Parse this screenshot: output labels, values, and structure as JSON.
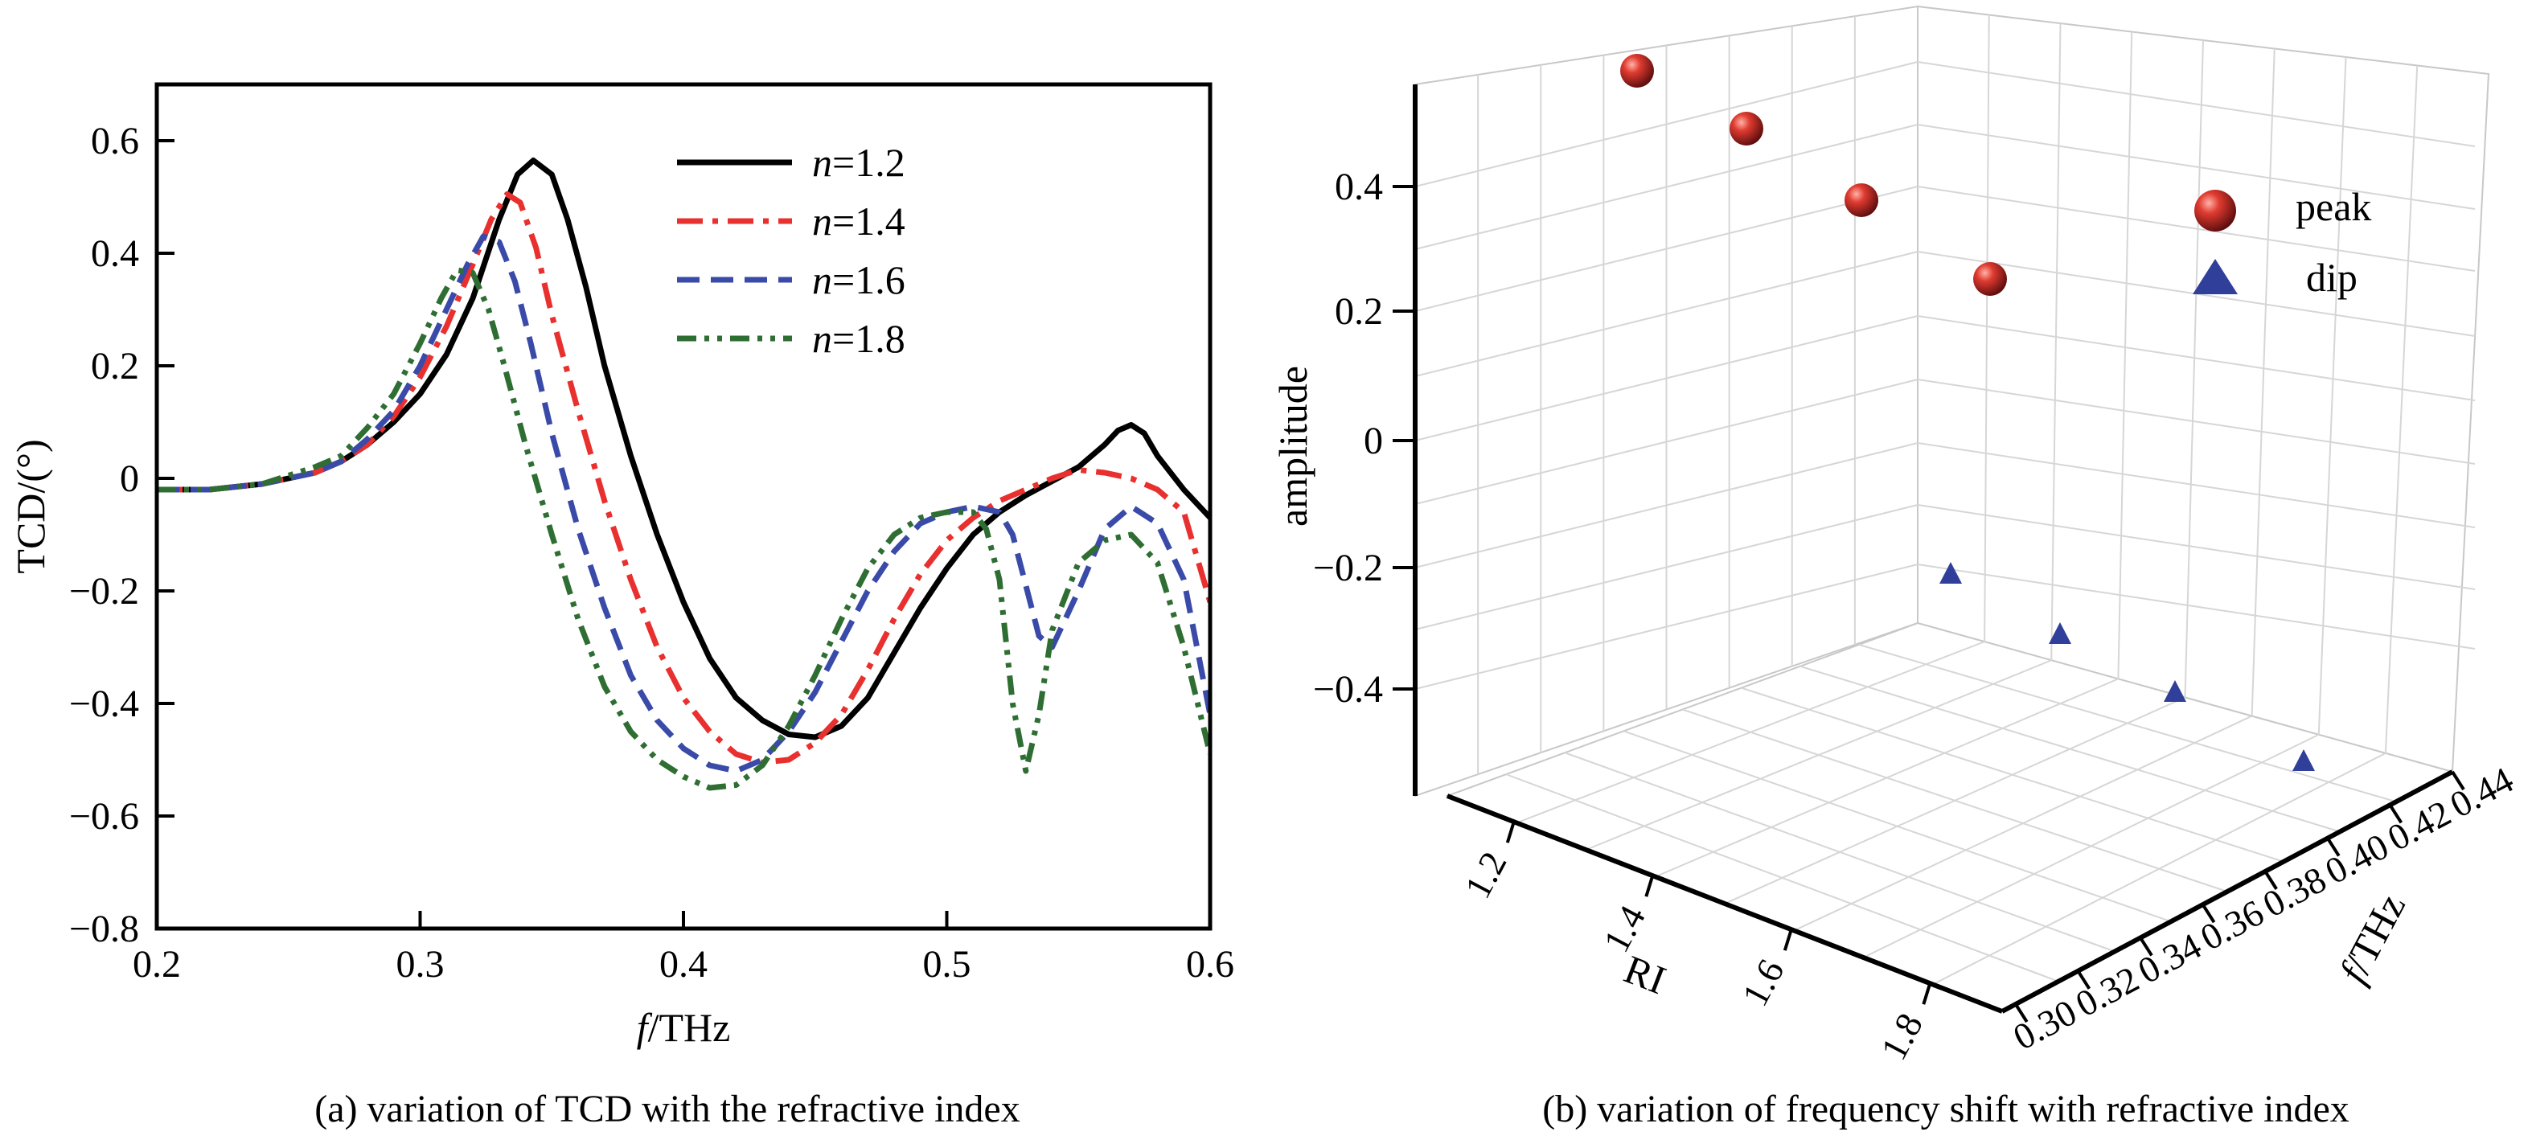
{
  "figure": {
    "caption_a": "(a) variation of TCD with the refractive index",
    "caption_b": "(b) variation of frequency shift with refractive index"
  },
  "chart_data": [
    {
      "type": "line",
      "xlabel": "f/THz",
      "ylabel": "TCD/(°)",
      "xlim": [
        0.2,
        0.6
      ],
      "ylim": [
        -0.8,
        0.7
      ],
      "xticks": [
        "0.2",
        "0.3",
        "0.4",
        "0.5",
        "0.6"
      ],
      "yticks": [
        "0.6",
        "0.4",
        "0.2",
        "0",
        "−0.2",
        "−0.4",
        "−0.6",
        "−0.8"
      ],
      "legend_position": "top-right",
      "series": [
        {
          "name": "n=1.2",
          "label_italic": "n",
          "label_rest": "=1.2",
          "color": "#000000",
          "dash": "solid",
          "x": [
            0.2,
            0.22,
            0.24,
            0.26,
            0.27,
            0.28,
            0.29,
            0.3,
            0.31,
            0.32,
            0.33,
            0.337,
            0.343,
            0.35,
            0.356,
            0.363,
            0.37,
            0.38,
            0.39,
            0.4,
            0.41,
            0.42,
            0.43,
            0.44,
            0.45,
            0.46,
            0.47,
            0.48,
            0.49,
            0.5,
            0.51,
            0.52,
            0.53,
            0.54,
            0.55,
            0.56,
            0.565,
            0.57,
            0.575,
            0.58,
            0.59,
            0.6
          ],
          "y": [
            -0.02,
            -0.02,
            -0.01,
            0.01,
            0.03,
            0.06,
            0.1,
            0.15,
            0.22,
            0.32,
            0.46,
            0.54,
            0.565,
            0.54,
            0.46,
            0.34,
            0.2,
            0.04,
            -0.1,
            -0.22,
            -0.32,
            -0.39,
            -0.43,
            -0.455,
            -0.46,
            -0.44,
            -0.39,
            -0.31,
            -0.23,
            -0.16,
            -0.1,
            -0.06,
            -0.03,
            -0.005,
            0.02,
            0.06,
            0.085,
            0.095,
            0.08,
            0.04,
            -0.02,
            -0.07
          ]
        },
        {
          "name": "n=1.4",
          "label_italic": "n",
          "label_rest": "=1.4",
          "color": "#e8302e",
          "dash": "dashdot",
          "x": [
            0.2,
            0.22,
            0.24,
            0.26,
            0.27,
            0.28,
            0.29,
            0.3,
            0.31,
            0.32,
            0.327,
            0.333,
            0.338,
            0.344,
            0.35,
            0.36,
            0.37,
            0.38,
            0.39,
            0.4,
            0.41,
            0.42,
            0.43,
            0.44,
            0.45,
            0.46,
            0.47,
            0.48,
            0.49,
            0.5,
            0.51,
            0.52,
            0.53,
            0.54,
            0.55,
            0.56,
            0.57,
            0.58,
            0.59,
            0.6
          ],
          "y": [
            -0.02,
            -0.02,
            -0.01,
            0.01,
            0.03,
            0.06,
            0.11,
            0.18,
            0.27,
            0.38,
            0.46,
            0.505,
            0.49,
            0.41,
            0.29,
            0.12,
            -0.04,
            -0.18,
            -0.3,
            -0.39,
            -0.45,
            -0.49,
            -0.505,
            -0.5,
            -0.47,
            -0.42,
            -0.34,
            -0.25,
            -0.17,
            -0.11,
            -0.07,
            -0.04,
            -0.02,
            0.0,
            0.015,
            0.01,
            0.0,
            -0.02,
            -0.06,
            -0.22
          ]
        },
        {
          "name": "n=1.6",
          "label_italic": "n",
          "label_rest": "=1.6",
          "color": "#3a4aa8",
          "dash": "dash",
          "x": [
            0.2,
            0.22,
            0.24,
            0.26,
            0.27,
            0.28,
            0.29,
            0.3,
            0.31,
            0.318,
            0.324,
            0.33,
            0.336,
            0.342,
            0.35,
            0.36,
            0.37,
            0.38,
            0.39,
            0.4,
            0.41,
            0.42,
            0.43,
            0.44,
            0.45,
            0.46,
            0.47,
            0.48,
            0.49,
            0.5,
            0.51,
            0.52,
            0.525,
            0.53,
            0.535,
            0.54,
            0.55,
            0.56,
            0.57,
            0.58,
            0.59,
            0.6
          ],
          "y": [
            -0.02,
            -0.02,
            -0.01,
            0.01,
            0.03,
            0.07,
            0.12,
            0.2,
            0.3,
            0.38,
            0.43,
            0.42,
            0.35,
            0.24,
            0.08,
            -0.09,
            -0.23,
            -0.35,
            -0.43,
            -0.48,
            -0.51,
            -0.52,
            -0.5,
            -0.45,
            -0.38,
            -0.29,
            -0.2,
            -0.13,
            -0.08,
            -0.06,
            -0.05,
            -0.06,
            -0.1,
            -0.19,
            -0.28,
            -0.3,
            -0.2,
            -0.09,
            -0.05,
            -0.08,
            -0.18,
            -0.42
          ]
        },
        {
          "name": "n=1.8",
          "label_italic": "n",
          "label_rest": "=1.8",
          "color": "#2f6e33",
          "dash": "dashdotdot",
          "x": [
            0.2,
            0.22,
            0.24,
            0.26,
            0.27,
            0.28,
            0.29,
            0.3,
            0.308,
            0.314,
            0.32,
            0.326,
            0.332,
            0.34,
            0.35,
            0.36,
            0.37,
            0.38,
            0.39,
            0.4,
            0.41,
            0.42,
            0.43,
            0.44,
            0.45,
            0.46,
            0.47,
            0.48,
            0.49,
            0.5,
            0.51,
            0.515,
            0.52,
            0.525,
            0.53,
            0.535,
            0.54,
            0.55,
            0.56,
            0.57,
            0.58,
            0.59,
            0.6
          ],
          "y": [
            -0.02,
            -0.02,
            -0.01,
            0.02,
            0.04,
            0.09,
            0.15,
            0.24,
            0.32,
            0.37,
            0.365,
            0.3,
            0.2,
            0.06,
            -0.1,
            -0.25,
            -0.37,
            -0.45,
            -0.5,
            -0.53,
            -0.55,
            -0.545,
            -0.51,
            -0.44,
            -0.35,
            -0.25,
            -0.16,
            -0.1,
            -0.07,
            -0.06,
            -0.06,
            -0.09,
            -0.18,
            -0.4,
            -0.52,
            -0.42,
            -0.27,
            -0.15,
            -0.11,
            -0.1,
            -0.15,
            -0.3,
            -0.49
          ]
        }
      ]
    },
    {
      "type": "scatter",
      "projection": "3d",
      "xlabel": "RI",
      "ylabel": "f/THz",
      "zlabel": "amplitude",
      "xticks": [
        "1.2",
        "1.4",
        "1.6",
        "1.8"
      ],
      "yticks": [
        "0.30",
        "0.32",
        "0.34",
        "0.36",
        "0.38",
        "0.40",
        "0.42",
        "0.44"
      ],
      "zticks": [
        "0.4",
        "0.2",
        "0",
        "−0.2",
        "−0.4"
      ],
      "xlim": [
        1.1,
        1.9
      ],
      "ylim": [
        0.3,
        0.44
      ],
      "zlim": [
        -0.6,
        0.6
      ],
      "grid": true,
      "legend_position": "top-right",
      "series": [
        {
          "name": "peak",
          "marker": "sphere",
          "color": "#c42626",
          "x": [
            1.2,
            1.4,
            1.6,
            1.8
          ],
          "y": [
            0.345,
            0.338,
            0.33,
            0.32
          ],
          "z": [
            0.58,
            0.51,
            0.44,
            0.37
          ]
        },
        {
          "name": "dip",
          "marker": "triangle",
          "color": "#2f3f9a",
          "x": [
            1.2,
            1.4,
            1.6,
            1.8
          ],
          "y": [
            0.44,
            0.43,
            0.42,
            0.41
          ],
          "z": [
            -0.46,
            -0.5,
            -0.52,
            -0.55
          ]
        }
      ]
    }
  ]
}
